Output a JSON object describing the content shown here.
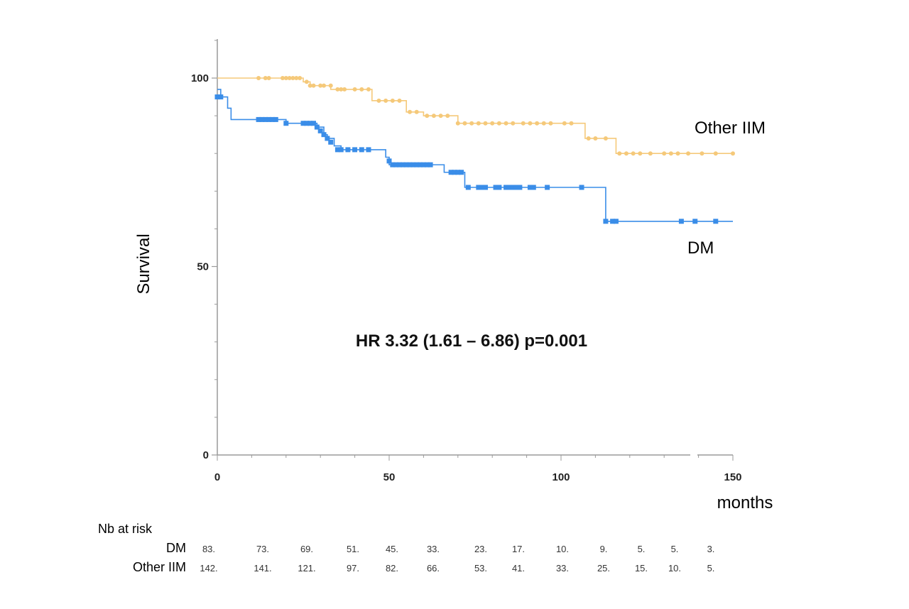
{
  "chart_data": {
    "type": "line",
    "subtype": "kaplan-meier",
    "ylabel": "Survival",
    "xlabel": "months",
    "xlim": [
      0,
      150
    ],
    "ylim": [
      0,
      100
    ],
    "x_ticks": [
      0,
      50,
      100,
      150
    ],
    "y_ticks": [
      0,
      50,
      100
    ],
    "annotation": "HR 3.32 (1.61 – 6.86) p=0.001",
    "series": [
      {
        "name": "Other IIM",
        "color": "#f5c97a",
        "steps": [
          [
            0,
            100
          ],
          [
            25,
            99
          ],
          [
            27,
            98
          ],
          [
            33,
            97
          ],
          [
            45,
            94
          ],
          [
            55,
            91
          ],
          [
            60,
            90
          ],
          [
            70,
            88
          ],
          [
            107,
            84
          ],
          [
            116,
            80
          ],
          [
            150,
            80
          ]
        ],
        "censors": [
          [
            12,
            100
          ],
          [
            14,
            100
          ],
          [
            15,
            100
          ],
          [
            19,
            100
          ],
          [
            20,
            100
          ],
          [
            21,
            100
          ],
          [
            22,
            100
          ],
          [
            23,
            100
          ],
          [
            24,
            100
          ],
          [
            26,
            99
          ],
          [
            27,
            98
          ],
          [
            28,
            98
          ],
          [
            30,
            98
          ],
          [
            31,
            98
          ],
          [
            33,
            98
          ],
          [
            35,
            97
          ],
          [
            36,
            97
          ],
          [
            37,
            97
          ],
          [
            40,
            97
          ],
          [
            42,
            97
          ],
          [
            44,
            97
          ],
          [
            47,
            94
          ],
          [
            49,
            94
          ],
          [
            51,
            94
          ],
          [
            53,
            94
          ],
          [
            56,
            91
          ],
          [
            58,
            91
          ],
          [
            61,
            90
          ],
          [
            63,
            90
          ],
          [
            65,
            90
          ],
          [
            67,
            90
          ],
          [
            70,
            88
          ],
          [
            72,
            88
          ],
          [
            74,
            88
          ],
          [
            76,
            88
          ],
          [
            78,
            88
          ],
          [
            80,
            88
          ],
          [
            82,
            88
          ],
          [
            84,
            88
          ],
          [
            86,
            88
          ],
          [
            89,
            88
          ],
          [
            91,
            88
          ],
          [
            93,
            88
          ],
          [
            95,
            88
          ],
          [
            97,
            88
          ],
          [
            101,
            88
          ],
          [
            103,
            88
          ],
          [
            108,
            84
          ],
          [
            110,
            84
          ],
          [
            113,
            84
          ],
          [
            117,
            80
          ],
          [
            119,
            80
          ],
          [
            121,
            80
          ],
          [
            123,
            80
          ],
          [
            126,
            80
          ],
          [
            130,
            80
          ],
          [
            132,
            80
          ],
          [
            134,
            80
          ],
          [
            137,
            80
          ],
          [
            141,
            80
          ],
          [
            145,
            80
          ],
          [
            150,
            80
          ]
        ]
      },
      {
        "name": "DM",
        "color": "#3a8de8",
        "steps": [
          [
            0,
            97
          ],
          [
            1,
            95
          ],
          [
            3,
            92
          ],
          [
            4,
            89
          ],
          [
            20,
            88
          ],
          [
            29,
            87
          ],
          [
            31,
            85
          ],
          [
            32,
            84
          ],
          [
            34,
            82
          ],
          [
            36,
            81
          ],
          [
            49,
            79
          ],
          [
            50,
            77
          ],
          [
            66,
            75
          ],
          [
            72,
            71
          ],
          [
            113,
            62
          ],
          [
            150,
            62
          ]
        ],
        "censors": [
          [
            0,
            95
          ],
          [
            1,
            95
          ],
          [
            12,
            89
          ],
          [
            13,
            89
          ],
          [
            14,
            89
          ],
          [
            15,
            89
          ],
          [
            16,
            89
          ],
          [
            17,
            89
          ],
          [
            20,
            88
          ],
          [
            25,
            88
          ],
          [
            26,
            88
          ],
          [
            27,
            88
          ],
          [
            28,
            88
          ],
          [
            29,
            87
          ],
          [
            30,
            86
          ],
          [
            31,
            85
          ],
          [
            32,
            84
          ],
          [
            33,
            83
          ],
          [
            35,
            81
          ],
          [
            36,
            81
          ],
          [
            38,
            81
          ],
          [
            40,
            81
          ],
          [
            42,
            81
          ],
          [
            44,
            81
          ],
          [
            50,
            78
          ],
          [
            51,
            77
          ],
          [
            52,
            77
          ],
          [
            53,
            77
          ],
          [
            54,
            77
          ],
          [
            55,
            77
          ],
          [
            56,
            77
          ],
          [
            57,
            77
          ],
          [
            58,
            77
          ],
          [
            59,
            77
          ],
          [
            60,
            77
          ],
          [
            61,
            77
          ],
          [
            62,
            77
          ],
          [
            68,
            75
          ],
          [
            69,
            75
          ],
          [
            70,
            75
          ],
          [
            71,
            75
          ],
          [
            73,
            71
          ],
          [
            76,
            71
          ],
          [
            77,
            71
          ],
          [
            78,
            71
          ],
          [
            81,
            71
          ],
          [
            82,
            71
          ],
          [
            84,
            71
          ],
          [
            85,
            71
          ],
          [
            86,
            71
          ],
          [
            87,
            71
          ],
          [
            88,
            71
          ],
          [
            91,
            71
          ],
          [
            92,
            71
          ],
          [
            96,
            71
          ],
          [
            106,
            71
          ],
          [
            113,
            62
          ],
          [
            115,
            62
          ],
          [
            116,
            62
          ],
          [
            135,
            62
          ],
          [
            139,
            62
          ],
          [
            145,
            62
          ]
        ]
      }
    ]
  },
  "risk_table": {
    "title": "Nb at risk",
    "rows": [
      {
        "label": "DM",
        "values": [
          "83.",
          "73.",
          "69.",
          "51.",
          "45.",
          "33.",
          "23.",
          "17.",
          "10.",
          "9.",
          "5.",
          "5.",
          "3."
        ]
      },
      {
        "label": "Other IIM",
        "values": [
          "142.",
          "141.",
          "121.",
          "97.",
          "82.",
          "66.",
          "53.",
          "41.",
          "33.",
          "25.",
          "15.",
          "10.",
          "5."
        ]
      }
    ]
  }
}
